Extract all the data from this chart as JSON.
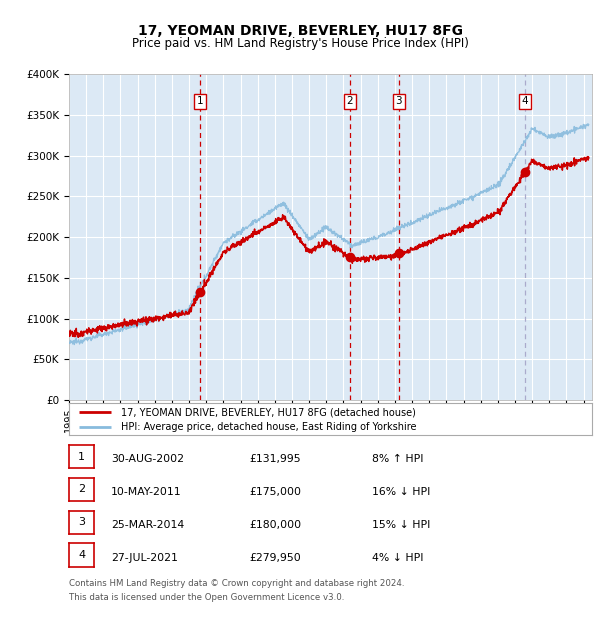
{
  "title": "17, YEOMAN DRIVE, BEVERLEY, HU17 8FG",
  "subtitle": "Price paid vs. HM Land Registry's House Price Index (HPI)",
  "ylim": [
    0,
    400000
  ],
  "yticks": [
    0,
    50000,
    100000,
    150000,
    200000,
    250000,
    300000,
    350000,
    400000
  ],
  "ytick_labels": [
    "£0",
    "£50K",
    "£100K",
    "£150K",
    "£200K",
    "£250K",
    "£300K",
    "£350K",
    "£400K"
  ],
  "xlim_start": 1995.0,
  "xlim_end": 2025.5,
  "bg_color": "#dce9f5",
  "grid_color": "#ffffff",
  "red_line_color": "#cc0000",
  "blue_line_color": "#88bbdd",
  "sale_marker_color": "#cc0000",
  "vline_sales_color": "#cc0000",
  "vline_last_color": "#aaaacc",
  "legend_line1": "17, YEOMAN DRIVE, BEVERLEY, HU17 8FG (detached house)",
  "legend_line2": "HPI: Average price, detached house, East Riding of Yorkshire",
  "sales": [
    {
      "num": 1,
      "date_year": 2002.66,
      "price": 131995
    },
    {
      "num": 2,
      "date_year": 2011.36,
      "price": 175000
    },
    {
      "num": 3,
      "date_year": 2014.23,
      "price": 180000
    },
    {
      "num": 4,
      "date_year": 2021.57,
      "price": 279950
    }
  ],
  "footer1": "Contains HM Land Registry data © Crown copyright and database right 2024.",
  "footer2": "This data is licensed under the Open Government Licence v3.0.",
  "table_rows": [
    {
      "num": 1,
      "date": "30-AUG-2002",
      "price": "£131,995",
      "hpi": "8% ↑ HPI"
    },
    {
      "num": 2,
      "date": "10-MAY-2011",
      "price": "£175,000",
      "hpi": "16% ↓ HPI"
    },
    {
      "num": 3,
      "date": "25-MAR-2014",
      "price": "£180,000",
      "hpi": "15% ↓ HPI"
    },
    {
      "num": 4,
      "date": "27-JUL-2021",
      "price": "£279,950",
      "hpi": "4% ↓ HPI"
    }
  ]
}
